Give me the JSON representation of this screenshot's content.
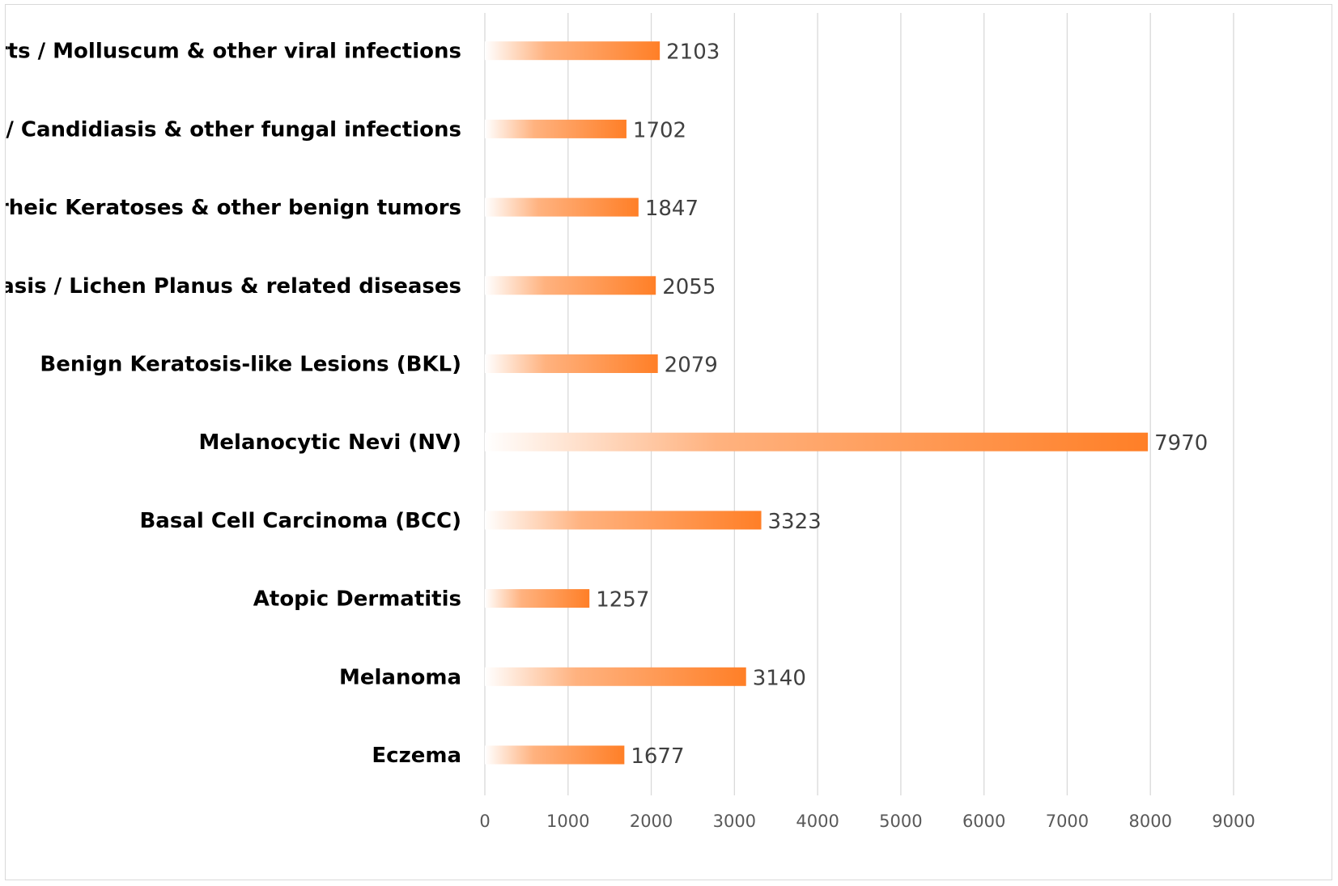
{
  "chart_data": {
    "type": "bar",
    "orientation": "horizontal",
    "title": "",
    "xlabel": "",
    "ylabel": "",
    "categories": [
      "Eczema",
      "Melanoma",
      "Atopic Dermatitis",
      "Basal Cell Carcinoma (BCC)",
      "Melanocytic Nevi (NV)",
      "Benign Keratosis-like Lesions (BKL)",
      "Psoriasis / Lichen Planus & related diseases",
      "Seborrheic Keratoses & other benign tumors",
      "Tinea / Candidiasis & other fungal infections",
      "Warts / Molluscum & other viral infections"
    ],
    "values": [
      1677,
      3140,
      1257,
      3323,
      7970,
      2079,
      2055,
      1847,
      1702,
      2103
    ],
    "xlim": [
      0,
      9000
    ],
    "ticks": [
      0,
      1000,
      2000,
      3000,
      4000,
      5000,
      6000,
      7000,
      8000,
      9000
    ],
    "grid": true,
    "legend": "none",
    "bar_color": "#ff7f27",
    "bar_gradient_start": "#ffffff"
  }
}
